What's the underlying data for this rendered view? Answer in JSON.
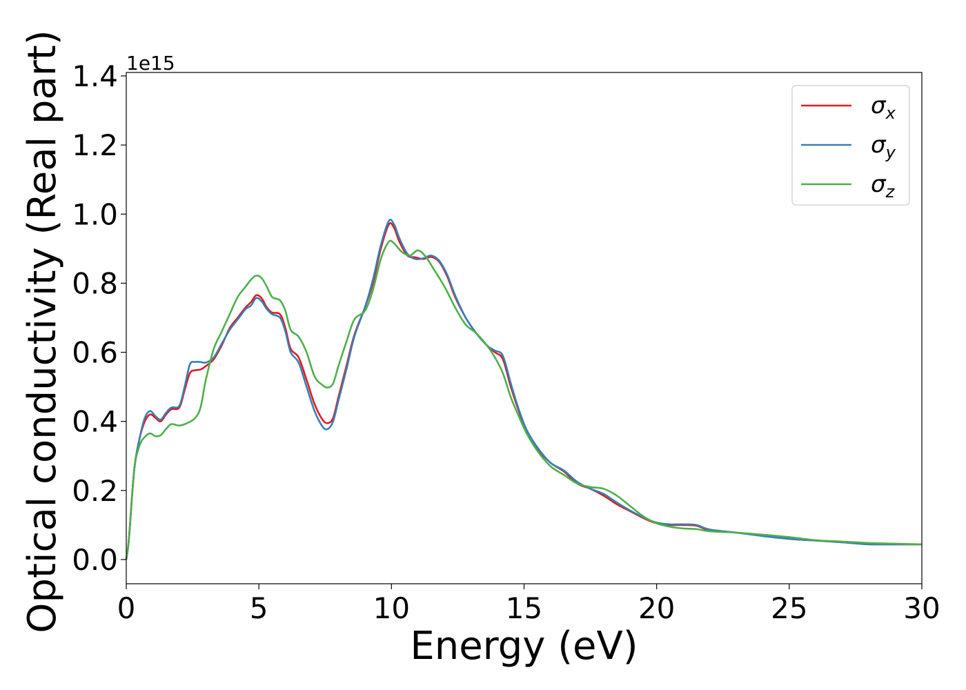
{
  "chart_data": {
    "type": "line",
    "xlabel": "Energy (eV)",
    "ylabel": "Optical conductivity (Real part)",
    "y_offset_label": "1e15",
    "y_scale_factor": 1000000000000000.0,
    "xlim": [
      0,
      30
    ],
    "ylim": [
      -0.07,
      1.41
    ],
    "x_ticks": [
      0,
      5,
      10,
      15,
      20,
      25,
      30
    ],
    "x_tick_labels": [
      "0",
      "5",
      "10",
      "15",
      "20",
      "25",
      "30"
    ],
    "y_ticks": [
      0.0,
      0.2,
      0.4,
      0.6,
      0.8,
      1.0,
      1.2,
      1.4
    ],
    "y_tick_labels": [
      "0.0",
      "0.2",
      "0.4",
      "0.6",
      "0.8",
      "1.0",
      "1.2",
      "1.4"
    ],
    "grid": false,
    "legend": {
      "placement": "top-right"
    },
    "series": [
      {
        "name": "σx",
        "name_base": "σ",
        "name_sub": "x",
        "color": "#e41a1c",
        "points": [
          [
            0,
            0
          ],
          [
            0.1,
            0.06
          ],
          [
            0.3,
            0.26
          ],
          [
            0.5,
            0.35
          ],
          [
            0.7,
            0.4
          ],
          [
            0.9,
            0.42
          ],
          [
            1.1,
            0.41
          ],
          [
            1.3,
            0.4
          ],
          [
            1.5,
            0.42
          ],
          [
            1.7,
            0.435
          ],
          [
            2.0,
            0.44
          ],
          [
            2.2,
            0.49
          ],
          [
            2.4,
            0.54
          ],
          [
            2.6,
            0.548
          ],
          [
            2.8,
            0.55
          ],
          [
            3.0,
            0.56
          ],
          [
            3.3,
            0.58
          ],
          [
            3.6,
            0.62
          ],
          [
            3.9,
            0.67
          ],
          [
            4.2,
            0.7
          ],
          [
            4.5,
            0.73
          ],
          [
            4.7,
            0.745
          ],
          [
            4.9,
            0.765
          ],
          [
            5.1,
            0.757
          ],
          [
            5.3,
            0.73
          ],
          [
            5.5,
            0.715
          ],
          [
            5.8,
            0.71
          ],
          [
            6.0,
            0.67
          ],
          [
            6.2,
            0.61
          ],
          [
            6.5,
            0.585
          ],
          [
            6.8,
            0.52
          ],
          [
            7.1,
            0.45
          ],
          [
            7.4,
            0.405
          ],
          [
            7.6,
            0.395
          ],
          [
            7.8,
            0.41
          ],
          [
            8.0,
            0.47
          ],
          [
            8.3,
            0.56
          ],
          [
            8.6,
            0.65
          ],
          [
            9.0,
            0.73
          ],
          [
            9.3,
            0.8
          ],
          [
            9.6,
            0.9
          ],
          [
            9.9,
            0.97
          ],
          [
            10.1,
            0.96
          ],
          [
            10.3,
            0.92
          ],
          [
            10.6,
            0.88
          ],
          [
            10.9,
            0.875
          ],
          [
            11.2,
            0.87
          ],
          [
            11.5,
            0.876
          ],
          [
            11.8,
            0.862
          ],
          [
            12.1,
            0.82
          ],
          [
            12.4,
            0.76
          ],
          [
            12.8,
            0.7
          ],
          [
            13.2,
            0.655
          ],
          [
            13.6,
            0.62
          ],
          [
            13.9,
            0.6
          ],
          [
            14.2,
            0.58
          ],
          [
            14.5,
            0.5
          ],
          [
            14.8,
            0.43
          ],
          [
            15.1,
            0.37
          ],
          [
            15.5,
            0.32
          ],
          [
            16.0,
            0.28
          ],
          [
            16.5,
            0.255
          ],
          [
            17.0,
            0.22
          ],
          [
            17.5,
            0.205
          ],
          [
            18.0,
            0.185
          ],
          [
            18.5,
            0.16
          ],
          [
            19.0,
            0.14
          ],
          [
            19.5,
            0.12
          ],
          [
            20.0,
            0.105
          ],
          [
            20.5,
            0.1
          ],
          [
            21.0,
            0.1
          ],
          [
            21.5,
            0.098
          ],
          [
            22.0,
            0.085
          ],
          [
            23.0,
            0.078
          ],
          [
            24.0,
            0.07
          ],
          [
            25.0,
            0.06
          ],
          [
            26.0,
            0.055
          ],
          [
            27.0,
            0.05
          ],
          [
            28.0,
            0.045
          ],
          [
            29.0,
            0.044
          ],
          [
            30.0,
            0.044
          ]
        ]
      },
      {
        "name": "σy",
        "name_base": "σ",
        "name_sub": "y",
        "color": "#377eb8",
        "points": [
          [
            0,
            0
          ],
          [
            0.1,
            0.06
          ],
          [
            0.3,
            0.26
          ],
          [
            0.5,
            0.35
          ],
          [
            0.7,
            0.41
          ],
          [
            0.9,
            0.43
          ],
          [
            1.1,
            0.415
          ],
          [
            1.3,
            0.405
          ],
          [
            1.5,
            0.425
          ],
          [
            1.7,
            0.44
          ],
          [
            2.0,
            0.445
          ],
          [
            2.2,
            0.5
          ],
          [
            2.4,
            0.565
          ],
          [
            2.6,
            0.572
          ],
          [
            2.8,
            0.572
          ],
          [
            3.0,
            0.57
          ],
          [
            3.3,
            0.585
          ],
          [
            3.6,
            0.625
          ],
          [
            3.9,
            0.665
          ],
          [
            4.2,
            0.695
          ],
          [
            4.5,
            0.725
          ],
          [
            4.7,
            0.735
          ],
          [
            4.9,
            0.757
          ],
          [
            5.1,
            0.748
          ],
          [
            5.3,
            0.725
          ],
          [
            5.5,
            0.71
          ],
          [
            5.8,
            0.7
          ],
          [
            6.0,
            0.66
          ],
          [
            6.2,
            0.6
          ],
          [
            6.5,
            0.57
          ],
          [
            6.8,
            0.5
          ],
          [
            7.1,
            0.43
          ],
          [
            7.4,
            0.385
          ],
          [
            7.6,
            0.378
          ],
          [
            7.8,
            0.4
          ],
          [
            8.0,
            0.46
          ],
          [
            8.3,
            0.55
          ],
          [
            8.6,
            0.645
          ],
          [
            9.0,
            0.73
          ],
          [
            9.3,
            0.81
          ],
          [
            9.6,
            0.91
          ],
          [
            9.9,
            0.98
          ],
          [
            10.1,
            0.97
          ],
          [
            10.3,
            0.93
          ],
          [
            10.6,
            0.885
          ],
          [
            10.9,
            0.87
          ],
          [
            11.2,
            0.872
          ],
          [
            11.5,
            0.88
          ],
          [
            11.8,
            0.865
          ],
          [
            12.1,
            0.825
          ],
          [
            12.4,
            0.765
          ],
          [
            12.8,
            0.7
          ],
          [
            13.2,
            0.655
          ],
          [
            13.6,
            0.62
          ],
          [
            13.9,
            0.605
          ],
          [
            14.2,
            0.59
          ],
          [
            14.5,
            0.51
          ],
          [
            14.8,
            0.435
          ],
          [
            15.1,
            0.375
          ],
          [
            15.5,
            0.325
          ],
          [
            16.0,
            0.28
          ],
          [
            16.5,
            0.258
          ],
          [
            17.0,
            0.225
          ],
          [
            17.5,
            0.205
          ],
          [
            18.0,
            0.19
          ],
          [
            18.5,
            0.165
          ],
          [
            19.0,
            0.142
          ],
          [
            19.5,
            0.122
          ],
          [
            20.0,
            0.107
          ],
          [
            20.5,
            0.102
          ],
          [
            21.0,
            0.102
          ],
          [
            21.5,
            0.1
          ],
          [
            22.0,
            0.087
          ],
          [
            23.0,
            0.078
          ],
          [
            24.0,
            0.068
          ],
          [
            25.0,
            0.06
          ],
          [
            26.0,
            0.055
          ],
          [
            27.0,
            0.05
          ],
          [
            28.0,
            0.044
          ],
          [
            29.0,
            0.044
          ],
          [
            30.0,
            0.044
          ]
        ]
      },
      {
        "name": "σz",
        "name_base": "σ",
        "name_sub": "z",
        "color": "#4daf4a",
        "points": [
          [
            0,
            0
          ],
          [
            0.1,
            0.06
          ],
          [
            0.3,
            0.26
          ],
          [
            0.5,
            0.33
          ],
          [
            0.7,
            0.355
          ],
          [
            0.9,
            0.365
          ],
          [
            1.1,
            0.357
          ],
          [
            1.3,
            0.36
          ],
          [
            1.5,
            0.378
          ],
          [
            1.7,
            0.392
          ],
          [
            2.0,
            0.388
          ],
          [
            2.3,
            0.395
          ],
          [
            2.6,
            0.41
          ],
          [
            2.8,
            0.44
          ],
          [
            3.0,
            0.52
          ],
          [
            3.3,
            0.61
          ],
          [
            3.6,
            0.66
          ],
          [
            3.9,
            0.71
          ],
          [
            4.2,
            0.76
          ],
          [
            4.5,
            0.79
          ],
          [
            4.7,
            0.81
          ],
          [
            4.9,
            0.822
          ],
          [
            5.1,
            0.815
          ],
          [
            5.3,
            0.79
          ],
          [
            5.5,
            0.76
          ],
          [
            5.8,
            0.75
          ],
          [
            6.0,
            0.72
          ],
          [
            6.2,
            0.665
          ],
          [
            6.5,
            0.645
          ],
          [
            6.8,
            0.6
          ],
          [
            7.1,
            0.53
          ],
          [
            7.4,
            0.505
          ],
          [
            7.6,
            0.498
          ],
          [
            7.8,
            0.51
          ],
          [
            8.0,
            0.56
          ],
          [
            8.3,
            0.63
          ],
          [
            8.6,
            0.695
          ],
          [
            9.0,
            0.72
          ],
          [
            9.3,
            0.78
          ],
          [
            9.6,
            0.87
          ],
          [
            9.9,
            0.92
          ],
          [
            10.1,
            0.915
          ],
          [
            10.4,
            0.89
          ],
          [
            10.7,
            0.88
          ],
          [
            11.0,
            0.895
          ],
          [
            11.3,
            0.876
          ],
          [
            11.6,
            0.84
          ],
          [
            12.0,
            0.79
          ],
          [
            12.4,
            0.73
          ],
          [
            12.8,
            0.68
          ],
          [
            13.2,
            0.655
          ],
          [
            13.6,
            0.62
          ],
          [
            13.9,
            0.585
          ],
          [
            14.2,
            0.54
          ],
          [
            14.5,
            0.47
          ],
          [
            14.8,
            0.415
          ],
          [
            15.1,
            0.365
          ],
          [
            15.5,
            0.315
          ],
          [
            16.0,
            0.27
          ],
          [
            16.5,
            0.245
          ],
          [
            17.0,
            0.22
          ],
          [
            17.5,
            0.21
          ],
          [
            18.0,
            0.205
          ],
          [
            18.5,
            0.185
          ],
          [
            19.0,
            0.155
          ],
          [
            19.5,
            0.125
          ],
          [
            20.0,
            0.105
          ],
          [
            20.5,
            0.095
          ],
          [
            21.0,
            0.09
          ],
          [
            21.5,
            0.088
          ],
          [
            22.0,
            0.082
          ],
          [
            23.0,
            0.078
          ],
          [
            24.0,
            0.072
          ],
          [
            25.0,
            0.065
          ],
          [
            26.0,
            0.056
          ],
          [
            27.0,
            0.052
          ],
          [
            28.0,
            0.048
          ],
          [
            29.0,
            0.046
          ],
          [
            30.0,
            0.044
          ]
        ]
      }
    ]
  }
}
